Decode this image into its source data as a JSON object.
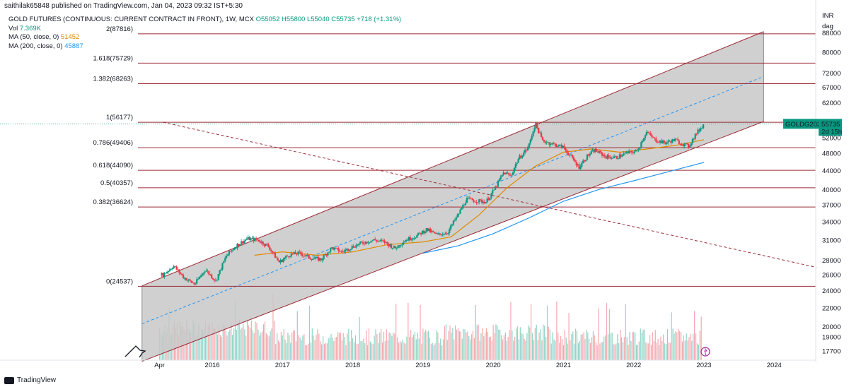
{
  "header": {
    "published": "saithilak65848 published on TradingView.com, Jan 04, 2023 09:32 IST+5:30"
  },
  "legend": {
    "symbol": "GOLD FUTURES (CONTINUOUS: CURRENT CONTRACT IN FRONT), 1W, MCX",
    "ohlc": "O55052 H55800 L55040 C55735 +718 (+1.31%)",
    "vol_label": "Vol",
    "vol_value": "7.369K",
    "ma50_label": "MA (50, close, 0)",
    "ma50_value": "51452",
    "ma200_label": "MA (200, close, 0)",
    "ma200_value": "45887"
  },
  "price_axis": {
    "currency": "INR",
    "unit": "dag",
    "ticks": [
      "80000",
      "72000",
      "67000",
      "62000",
      "55735",
      "52000",
      "48000",
      "44000",
      "40000",
      "37000",
      "34000",
      "31000",
      "28000",
      "26000",
      "24000",
      "22000",
      "20000",
      "19000",
      "17700"
    ],
    "top_partial": "88000"
  },
  "price_tag": {
    "symbol": "GOLDG2023",
    "price": "55735",
    "countdown": "2d 15h",
    "color": "#089981"
  },
  "time_axis": {
    "ticks": [
      "Apr",
      "2016",
      "2017",
      "2018",
      "2019",
      "2020",
      "2021",
      "2022",
      "2023",
      "2024"
    ]
  },
  "footer": {
    "brand": "TradingView"
  },
  "colors": {
    "up": "#089981",
    "down": "#f23645",
    "fib_line": "#9c2a35",
    "channel_fill": "#c8c8c8",
    "ma50": "#e08a00",
    "ma200": "#2196f3"
  },
  "chart_data": {
    "type": "candlestick",
    "title": "GOLD FUTURES (CONTINUOUS: CURRENT CONTRACT IN FRONT), 1W, MCX",
    "log_scale": true,
    "fib_levels": [
      {
        "label": "2(87816)",
        "ratio": 2,
        "price": 87816
      },
      {
        "label": "1.618(75729)",
        "ratio": 1.618,
        "price": 75729
      },
      {
        "label": "1.382(68263)",
        "ratio": 1.382,
        "price": 68263
      },
      {
        "label": "1(56177)",
        "ratio": 1,
        "price": 56177
      },
      {
        "label": "0.786(49406)",
        "ratio": 0.786,
        "price": 49406
      },
      {
        "label": "0.618(44090)",
        "ratio": 0.618,
        "price": 44090
      },
      {
        "label": "0.5(40357)",
        "ratio": 0.5,
        "price": 40357
      },
      {
        "label": "0.382(36624)",
        "ratio": 0.382,
        "price": 36624
      },
      {
        "label": "0(24537)",
        "ratio": 0,
        "price": 24537
      }
    ],
    "price_series": [
      {
        "t": 2015.3,
        "price": 26000
      },
      {
        "t": 2015.45,
        "price": 27200
      },
      {
        "t": 2015.6,
        "price": 25600
      },
      {
        "t": 2015.75,
        "price": 24800
      },
      {
        "t": 2015.9,
        "price": 26700
      },
      {
        "t": 2016.05,
        "price": 25200
      },
      {
        "t": 2016.2,
        "price": 28600
      },
      {
        "t": 2016.35,
        "price": 30200
      },
      {
        "t": 2016.5,
        "price": 31200
      },
      {
        "t": 2016.65,
        "price": 31000
      },
      {
        "t": 2016.8,
        "price": 30000
      },
      {
        "t": 2016.95,
        "price": 27700
      },
      {
        "t": 2017.1,
        "price": 28800
      },
      {
        "t": 2017.25,
        "price": 29000
      },
      {
        "t": 2017.4,
        "price": 28300
      },
      {
        "t": 2017.55,
        "price": 28100
      },
      {
        "t": 2017.7,
        "price": 29800
      },
      {
        "t": 2017.85,
        "price": 29200
      },
      {
        "t": 2018.0,
        "price": 30000
      },
      {
        "t": 2018.15,
        "price": 30600
      },
      {
        "t": 2018.3,
        "price": 31000
      },
      {
        "t": 2018.45,
        "price": 30700
      },
      {
        "t": 2018.6,
        "price": 29700
      },
      {
        "t": 2018.75,
        "price": 31000
      },
      {
        "t": 2018.9,
        "price": 31600
      },
      {
        "t": 2019.05,
        "price": 32700
      },
      {
        "t": 2019.2,
        "price": 31800
      },
      {
        "t": 2019.35,
        "price": 32200
      },
      {
        "t": 2019.5,
        "price": 35200
      },
      {
        "t": 2019.62,
        "price": 38100
      },
      {
        "t": 2019.75,
        "price": 37800
      },
      {
        "t": 2019.9,
        "price": 37600
      },
      {
        "t": 2020.02,
        "price": 40100
      },
      {
        "t": 2020.15,
        "price": 43600
      },
      {
        "t": 2020.25,
        "price": 42800
      },
      {
        "t": 2020.35,
        "price": 46500
      },
      {
        "t": 2020.5,
        "price": 49500
      },
      {
        "t": 2020.6,
        "price": 55800
      },
      {
        "t": 2020.7,
        "price": 51200
      },
      {
        "t": 2020.85,
        "price": 50300
      },
      {
        "t": 2021.0,
        "price": 49500
      },
      {
        "t": 2021.1,
        "price": 47300
      },
      {
        "t": 2021.22,
        "price": 44800
      },
      {
        "t": 2021.35,
        "price": 47600
      },
      {
        "t": 2021.45,
        "price": 48800
      },
      {
        "t": 2021.6,
        "price": 47200
      },
      {
        "t": 2021.75,
        "price": 47000
      },
      {
        "t": 2021.88,
        "price": 48000
      },
      {
        "t": 2022.05,
        "price": 48600
      },
      {
        "t": 2022.18,
        "price": 53500
      },
      {
        "t": 2022.3,
        "price": 51400
      },
      {
        "t": 2022.45,
        "price": 50600
      },
      {
        "t": 2022.58,
        "price": 51400
      },
      {
        "t": 2022.7,
        "price": 50300
      },
      {
        "t": 2022.78,
        "price": 49700
      },
      {
        "t": 2022.88,
        "price": 52800
      },
      {
        "t": 2023.0,
        "price": 55735
      }
    ],
    "ma50": [
      {
        "t": 2016.6,
        "price": 28700
      },
      {
        "t": 2017.0,
        "price": 29200
      },
      {
        "t": 2017.5,
        "price": 28700
      },
      {
        "t": 2018.0,
        "price": 29200
      },
      {
        "t": 2018.5,
        "price": 30300
      },
      {
        "t": 2019.0,
        "price": 30700
      },
      {
        "t": 2019.4,
        "price": 31500
      },
      {
        "t": 2019.8,
        "price": 35200
      },
      {
        "t": 2020.2,
        "price": 40400
      },
      {
        "t": 2020.6,
        "price": 45000
      },
      {
        "t": 2021.0,
        "price": 48300
      },
      {
        "t": 2021.4,
        "price": 49100
      },
      {
        "t": 2021.8,
        "price": 48300
      },
      {
        "t": 2022.2,
        "price": 49100
      },
      {
        "t": 2022.6,
        "price": 50000
      },
      {
        "t": 2023.0,
        "price": 51452
      }
    ],
    "ma200": [
      {
        "t": 2019.0,
        "price": 29000
      },
      {
        "t": 2019.5,
        "price": 30100
      },
      {
        "t": 2020.0,
        "price": 32000
      },
      {
        "t": 2020.5,
        "price": 34600
      },
      {
        "t": 2021.0,
        "price": 37700
      },
      {
        "t": 2021.5,
        "price": 40000
      },
      {
        "t": 2022.0,
        "price": 41800
      },
      {
        "t": 2022.5,
        "price": 43800
      },
      {
        "t": 2023.0,
        "price": 45887
      }
    ],
    "channel": {
      "lower": [
        {
          "t": 2015.0,
          "price": 16800
        },
        {
          "t": 2023.85,
          "price": 56400
        }
      ],
      "upper": [
        {
          "t": 2015.0,
          "price": 24600
        },
        {
          "t": 2023.85,
          "price": 88800
        }
      ],
      "mid": [
        {
          "t": 2015.0,
          "price": 20300
        },
        {
          "t": 2023.85,
          "price": 70800
        }
      ]
    },
    "downtrend": [
      {
        "t": 2015.3,
        "price": 56177
      },
      {
        "t": 2024.6,
        "price": 27000
      }
    ]
  }
}
